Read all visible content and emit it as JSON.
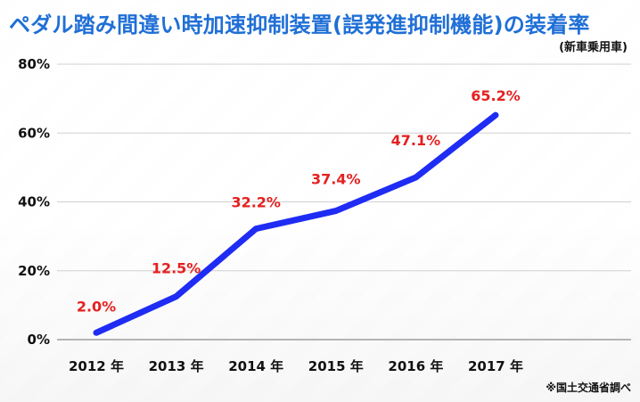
{
  "chart_data": {
    "type": "line",
    "title": "ペダル踏み間違い時加速抑制装置(誤発進抑制機能)の装着率",
    "subtitle": "(新車乗用車)",
    "source": "※国土交通省調べ",
    "x": [
      "2012 年",
      "2013 年",
      "2014 年",
      "2015 年",
      "2016 年",
      "2017 年"
    ],
    "series": [
      {
        "name": "",
        "values": [
          2.0,
          12.5,
          32.2,
          37.4,
          47.1,
          65.2
        ],
        "labels": [
          "2.0%",
          "12.5%",
          "32.2%",
          "37.4%",
          "47.1%",
          "65.2%"
        ]
      }
    ],
    "ylim": [
      0,
      80
    ],
    "yticks": [
      0,
      20,
      40,
      60,
      80
    ],
    "ytick_labels": [
      "0%",
      "20%",
      "40%",
      "60%",
      "80%"
    ],
    "grid": true,
    "colors": {
      "title": "#1f6fd6",
      "line": "#1f2cf3",
      "labels": "#e52020",
      "grid": "#d0d0d0",
      "axis": "#8a8a8a"
    }
  }
}
